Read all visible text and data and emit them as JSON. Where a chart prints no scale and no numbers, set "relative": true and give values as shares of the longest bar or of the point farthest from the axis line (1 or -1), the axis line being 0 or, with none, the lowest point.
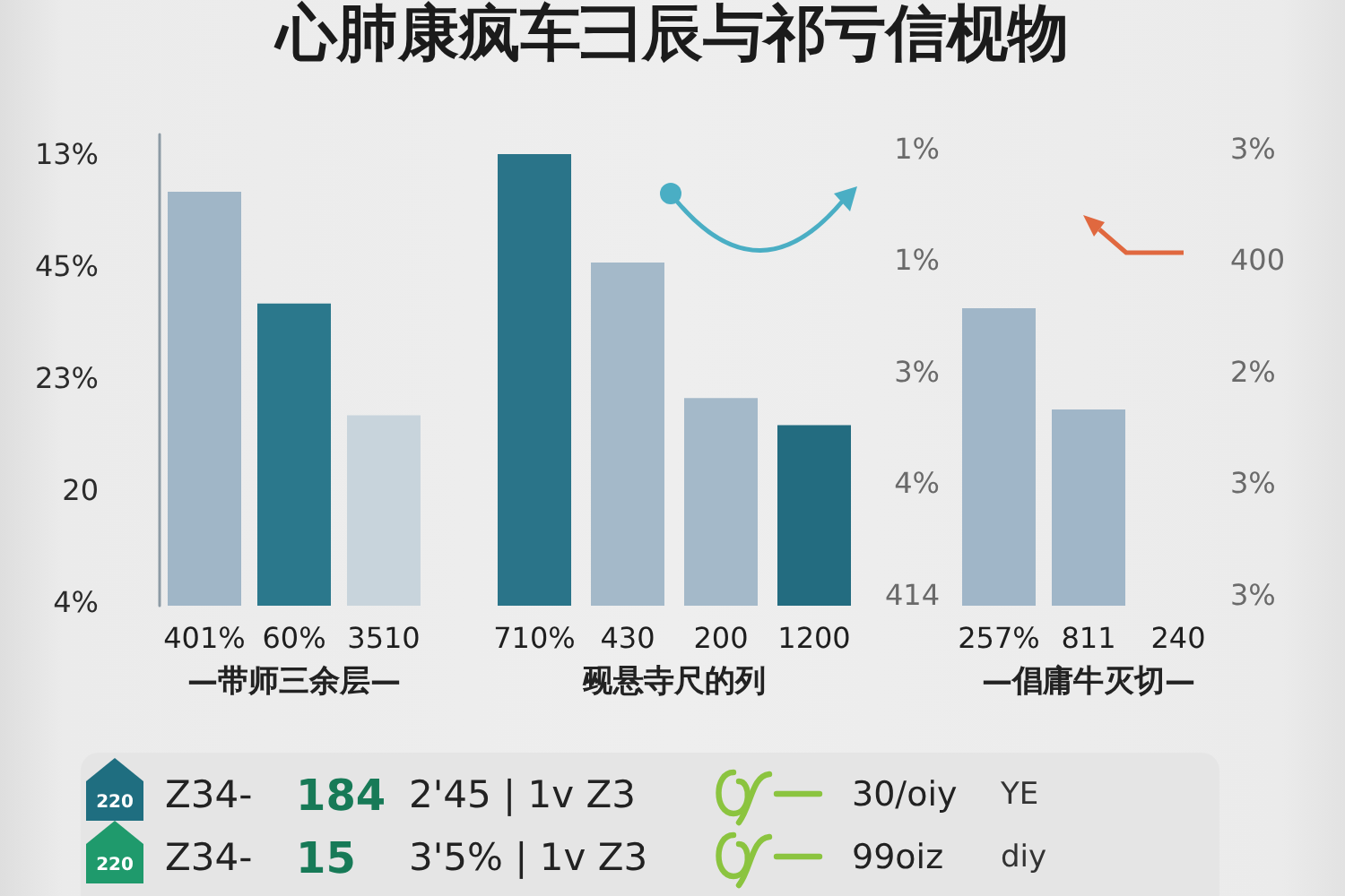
{
  "chart_data": [
    {
      "type": "bar",
      "title": "心肺康疯车彐辰与祁亏信枧物",
      "relative": true,
      "categories": [
        "401%",
        "60%",
        "3510"
      ],
      "values": [
        1,
        0.73,
        0.46
      ],
      "colors": [
        "#a0b6c7",
        "#2b788c",
        "#c8d4dc"
      ],
      "xlabel": "—带师三余层—",
      "annotations": [
        "13%",
        "45%",
        "23%",
        "20",
        "4%"
      ]
    },
    {
      "type": "bar",
      "relative": true,
      "categories": [
        "710%",
        "430",
        "200",
        "1200"
      ],
      "values": [
        1,
        0.76,
        0.46,
        0.4
      ],
      "colors": [
        "#2a7489",
        "#a4b9c9",
        "#a4b9c9",
        "#236c80"
      ],
      "xlabel": "觋悬寺尺的列"
    },
    {
      "type": "bar",
      "relative": true,
      "categories": [
        "257%",
        "811",
        "240"
      ],
      "values": [
        1,
        0.66,
        null
      ],
      "colors": [
        "#a0b6c8",
        "#a0b6c8",
        null
      ],
      "xlabel": "—倡庸牛灭切—",
      "annotations": [
        "1%",
        "1%",
        "3%",
        "4%",
        "414",
        "3%",
        "400",
        "2%",
        "3%",
        "3%"
      ]
    },
    {
      "type": "other",
      "annotations": [
        "220",
        "Z34-",
        "184",
        "2'45 | 1v Z3",
        "30/oiy",
        "YE",
        "220",
        "Z34-",
        "15",
        "3'5% | 1v Z3",
        "99oiz",
        "diy"
      ]
    }
  ]
}
